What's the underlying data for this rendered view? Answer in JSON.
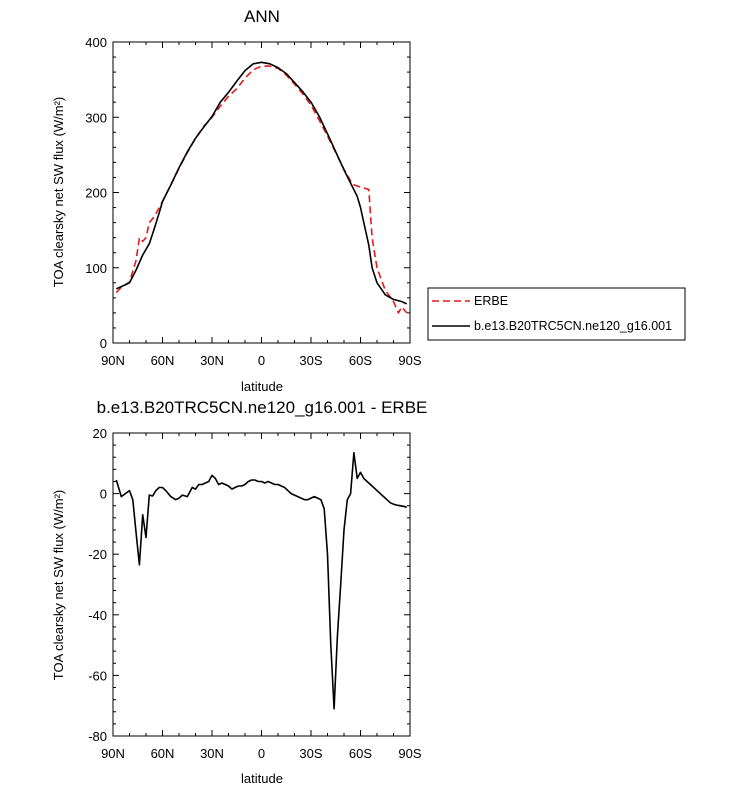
{
  "chart_data": [
    {
      "type": "line",
      "title": "ANN",
      "xlabel": "latitude",
      "ylabel": "TOA clearsky net SW flux (W/m²)",
      "x_ticks": [
        "90N",
        "60N",
        "30N",
        "0",
        "30S",
        "60S",
        "90S"
      ],
      "x_tick_values": [
        90,
        60,
        30,
        0,
        -30,
        -60,
        -90
      ],
      "xlim": [
        90,
        -90
      ],
      "ylim": [
        0,
        400
      ],
      "y_ticks": [
        0,
        100,
        200,
        300,
        400
      ],
      "grid": false,
      "legend_placement": "right",
      "series": [
        {
          "name": "ERBE",
          "color": "#e31a1c",
          "dash": true,
          "x": [
            88,
            85,
            80,
            76,
            74,
            72,
            70,
            68,
            65,
            60,
            55,
            50,
            45,
            40,
            35,
            30,
            25,
            20,
            15,
            10,
            5,
            0,
            -5,
            -10,
            -15,
            -20,
            -25,
            -30,
            -35,
            -40,
            -45,
            -50,
            -55,
            -60,
            -62,
            -65,
            -67,
            -70,
            -75,
            -80,
            -83,
            -85,
            -88
          ],
          "y": [
            67,
            74,
            81,
            110,
            140,
            135,
            140,
            160,
            168,
            188,
            210,
            232,
            253,
            272,
            288,
            300,
            315,
            328,
            338,
            352,
            363,
            368,
            368,
            365,
            356,
            344,
            331,
            316,
            296,
            275,
            253,
            231,
            211,
            207,
            206,
            204,
            140,
            100,
            70,
            55,
            40,
            48,
            40
          ]
        },
        {
          "name": "b.e13.B20TRC5CN.ne120_g16.001",
          "color": "#000000",
          "dash": false,
          "x": [
            88,
            85,
            80,
            76,
            72,
            68,
            65,
            62,
            60,
            55,
            50,
            45,
            40,
            35,
            30,
            25,
            20,
            15,
            10,
            5,
            0,
            -5,
            -10,
            -15,
            -20,
            -25,
            -30,
            -35,
            -40,
            -45,
            -50,
            -55,
            -58,
            -60,
            -62,
            -65,
            -67,
            -70,
            -75,
            -80,
            -85,
            -88
          ],
          "y": [
            72,
            75,
            80,
            97,
            117,
            132,
            152,
            173,
            188,
            210,
            233,
            254,
            272,
            287,
            301,
            320,
            333,
            348,
            362,
            371,
            373,
            371,
            366,
            358,
            346,
            334,
            320,
            301,
            278,
            254,
            230,
            208,
            195,
            180,
            160,
            130,
            100,
            80,
            64,
            58,
            55,
            52
          ]
        }
      ]
    },
    {
      "type": "line",
      "title": "b.e13.B20TRC5CN.ne120_g16.001 - ERBE",
      "xlabel": "latitude",
      "ylabel": "TOA clearsky net SW flux (W/m²)",
      "x_ticks": [
        "90N",
        "60N",
        "30N",
        "0",
        "30S",
        "60S",
        "90S"
      ],
      "x_tick_values": [
        90,
        60,
        30,
        0,
        -30,
        -60,
        -90
      ],
      "xlim": [
        90,
        -90
      ],
      "ylim": [
        -80,
        20
      ],
      "y_ticks": [
        -80,
        -60,
        -40,
        -20,
        0,
        20
      ],
      "grid": false,
      "series": [
        {
          "color": "#000000",
          "dash": false,
          "x": [
            88,
            85,
            80,
            78,
            76,
            74,
            72,
            70,
            68,
            66,
            64,
            62,
            60,
            58,
            55,
            52,
            50,
            48,
            45,
            42,
            40,
            38,
            36,
            34,
            32,
            30,
            28,
            26,
            24,
            22,
            20,
            18,
            16,
            14,
            12,
            10,
            8,
            6,
            4,
            2,
            0,
            -2,
            -4,
            -6,
            -8,
            -10,
            -12,
            -14,
            -16,
            -18,
            -20,
            -22,
            -24,
            -26,
            -28,
            -30,
            -32,
            -34,
            -36,
            -38,
            -40,
            -42,
            -44,
            -46,
            -48,
            -50,
            -52,
            -54,
            -56,
            -58,
            -60,
            -62,
            -64,
            -66,
            -68,
            -70,
            -72,
            -74,
            -76,
            -78,
            -80,
            -82,
            -84,
            -86,
            -88
          ],
          "y": [
            4.5,
            -1,
            1,
            -2,
            -13,
            -23.5,
            -7,
            -14.5,
            -0.5,
            -0.8,
            1,
            2,
            2,
            1,
            -1,
            -2,
            -1.5,
            -0.5,
            -1,
            2,
            1.5,
            3,
            3,
            3.5,
            4,
            6,
            5,
            3,
            3.5,
            3,
            2.5,
            1.5,
            2,
            2.5,
            2.5,
            3,
            4,
            4.5,
            4.5,
            4,
            4,
            3.5,
            4,
            3.5,
            3,
            3,
            2.5,
            2,
            1,
            0,
            -0.5,
            -1,
            -1.5,
            -2,
            -2,
            -1.5,
            -1,
            -1.5,
            -2,
            -5,
            -20,
            -50,
            -71,
            -47,
            -30,
            -12,
            -2,
            0,
            13.5,
            5,
            7,
            5,
            4,
            3,
            2,
            1,
            0,
            -1,
            -2,
            -3,
            -3.5,
            -3.8,
            -4,
            -4.2,
            -4.5
          ]
        }
      ]
    }
  ]
}
